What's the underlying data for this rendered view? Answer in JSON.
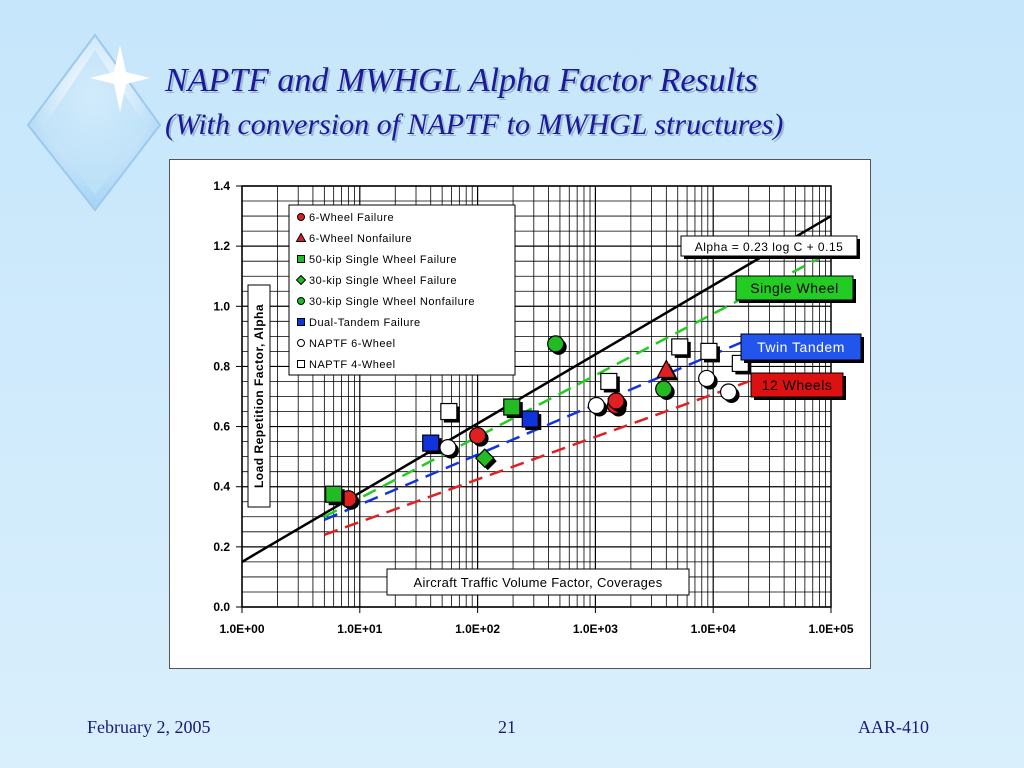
{
  "slide": {
    "title_line1": "NAPTF and MWHGL Alpha Factor Results",
    "title_line2": "(With conversion of NAPTF to MWHGL structures)",
    "footer_left": "February 2, 2005",
    "footer_center": "21",
    "footer_right": "AAR-410"
  },
  "chart_data": {
    "type": "scatter",
    "xlabel": "Aircraft Traffic Volume Factor, Coverages",
    "ylabel": "Load Repetition Factor, Alpha",
    "xscale": "log",
    "xlim": [
      1,
      100000
    ],
    "ylim": [
      0,
      1.4
    ],
    "x_tick_labels": [
      "1.0E+00",
      "1.0E+01",
      "1.0E+02",
      "1.0E+03",
      "1.0E+04",
      "1.0E+05"
    ],
    "y_tick_labels": [
      "0.0",
      "0.2",
      "0.4",
      "0.6",
      "0.8",
      "1.0",
      "1.2",
      "1.4"
    ],
    "grid": true,
    "legend_position": "top-left",
    "series": [
      {
        "name": "6-Wheel Failure",
        "marker": "circle",
        "color": "#e02020",
        "points": [
          [
            8,
            0.36
          ],
          [
            100,
            0.57
          ],
          [
            1480,
            0.67
          ],
          [
            1500,
            0.685
          ]
        ]
      },
      {
        "name": "6-Wheel Nonfailure",
        "marker": "triangle",
        "color": "#e02020",
        "points": [
          [
            4000,
            0.79
          ]
        ]
      },
      {
        "name": "50-kip Single Wheel Failure",
        "marker": "square",
        "color": "#22bb22",
        "points": [
          [
            6,
            0.375
          ],
          [
            195,
            0.665
          ]
        ]
      },
      {
        "name": "30-kip Single Wheel Failure",
        "marker": "diamond",
        "color": "#22bb22",
        "points": [
          [
            115,
            0.495
          ]
        ]
      },
      {
        "name": "30-kip Single Wheel Nonfailure",
        "marker": "circle",
        "color": "#22bb22",
        "points": [
          [
            460,
            0.875
          ],
          [
            3800,
            0.725
          ]
        ]
      },
      {
        "name": "Dual-Tandem Failure",
        "marker": "square",
        "color": "#1133dd",
        "points": [
          [
            40,
            0.545
          ],
          [
            280,
            0.625
          ]
        ]
      },
      {
        "name": "NAPTF 6-Wheel",
        "marker": "circle",
        "color": "#ffffff",
        "points": [
          [
            56,
            0.53
          ],
          [
            1020,
            0.67
          ],
          [
            8800,
            0.76
          ],
          [
            13500,
            0.715
          ]
        ]
      },
      {
        "name": "NAPTF 4-Wheel",
        "marker": "square",
        "color": "#ffffff",
        "points": [
          [
            57,
            0.65
          ],
          [
            1300,
            0.75
          ],
          [
            5200,
            0.865
          ],
          [
            9200,
            0.85
          ],
          [
            17000,
            0.81
          ]
        ]
      }
    ],
    "lines": [
      {
        "style": "solid",
        "color": "#000000",
        "slope": 0.23,
        "intercept": 0.15,
        "x_range": [
          1,
          100000
        ]
      },
      {
        "name": "Single Wheel",
        "style": "dashed",
        "color": "#22cc22",
        "points": [
          [
            5,
            0.3
          ],
          [
            80000,
            1.16
          ]
        ]
      },
      {
        "name": "Twin Tandem",
        "style": "dashed",
        "color": "#1133dd",
        "points": [
          [
            5,
            0.29
          ],
          [
            20000,
            0.89
          ]
        ]
      },
      {
        "name": "12 Wheels",
        "style": "dashed",
        "color": "#e02020",
        "points": [
          [
            5,
            0.24
          ],
          [
            20000,
            0.75
          ]
        ]
      }
    ],
    "annotations": {
      "equation": "Alpha = 0.23 log C + 0.15",
      "single_wheel": "Single Wheel",
      "twin_tandem": "Twin Tandem",
      "twelve_wheels": "12 Wheels"
    },
    "label_colors": {
      "single_wheel_bg": "#22cc22",
      "twin_tandem_bg": "#2255ee",
      "twelve_wheels_bg": "#dd1111"
    }
  }
}
